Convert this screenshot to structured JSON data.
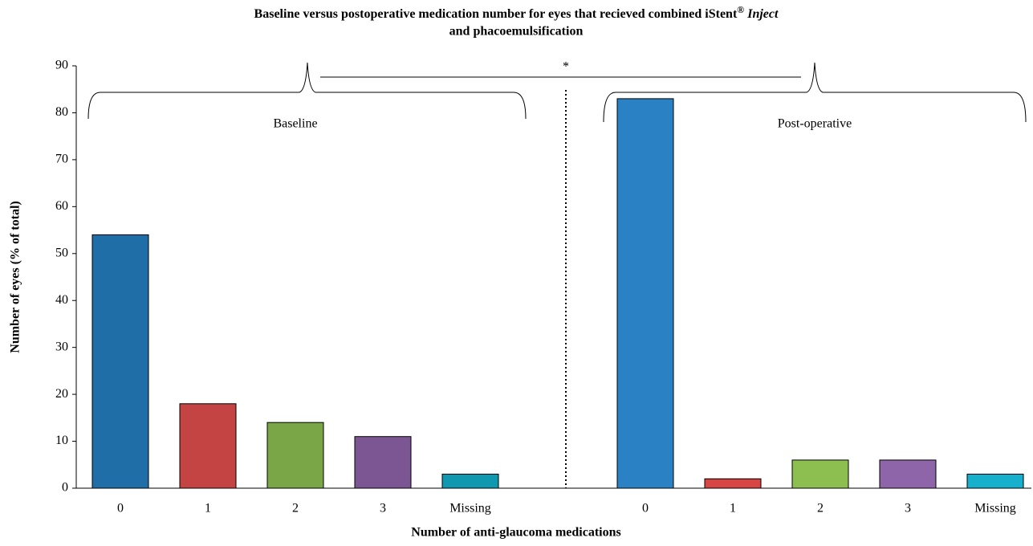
{
  "chart_data": {
    "type": "grouped-bar",
    "title": [
      "Baseline versus postoperative medication number for eyes that recieved combined iStent",
      "®",
      " Inject",
      "and phacoemulsification"
    ],
    "x_label": "Number of anti-glaucoma medications",
    "y_label": "Number of eyes (% of total)",
    "annotation": "*",
    "ylim": [
      0,
      90
    ],
    "yticks": [
      0,
      10,
      20,
      30,
      40,
      50,
      60,
      70,
      80,
      90
    ],
    "groups": [
      {
        "name": "Baseline",
        "categories": [
          "0",
          "1",
          "2",
          "3",
          "Missing"
        ],
        "values": [
          54,
          18,
          14,
          11,
          3
        ],
        "colors": [
          "#1f6ea8",
          "#c44444",
          "#7ba648",
          "#7c5593",
          "#1098b0"
        ]
      },
      {
        "name": "Post-operative",
        "categories": [
          "0",
          "1",
          "2",
          "3",
          "Missing"
        ],
        "values": [
          83,
          2,
          6,
          6,
          3
        ],
        "colors": [
          "#2a82c4",
          "#d84545",
          "#8dbf50",
          "#8f65a9",
          "#16b0cc"
        ]
      }
    ]
  }
}
